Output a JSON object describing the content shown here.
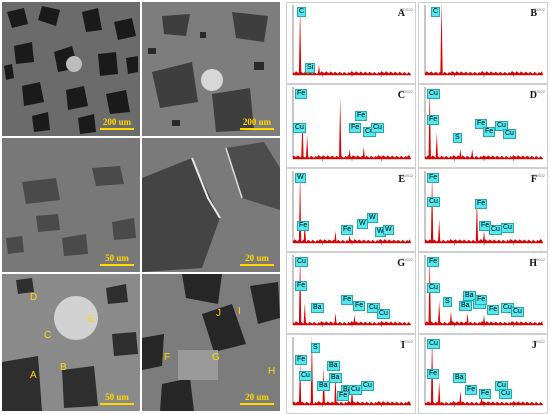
{
  "sem_panels": [
    {
      "scale_label": "200 um"
    },
    {
      "scale_label": "200 um"
    },
    {
      "scale_label": "50 um"
    },
    {
      "scale_label": "20 um"
    },
    {
      "scale_label": "50 um",
      "point_labels": [
        "A",
        "B",
        "C",
        "D",
        "E"
      ]
    },
    {
      "scale_label": "20 um",
      "point_labels": [
        "F",
        "G",
        "H",
        "I",
        "J"
      ]
    }
  ],
  "eds_panels": [
    {
      "letter": "A",
      "tag": "EDS02",
      "elements": [
        "C",
        "Si"
      ]
    },
    {
      "letter": "B",
      "tag": "EDS02",
      "elements": [
        "C"
      ]
    },
    {
      "letter": "C",
      "tag": "EDS02",
      "elements": [
        "Fe",
        "Cu",
        "Fe",
        "Fe",
        "Cu",
        "Cu"
      ]
    },
    {
      "letter": "D",
      "tag": "EDS02",
      "elements": [
        "Cu",
        "Fe",
        "S",
        "Fe",
        "Fe",
        "Cu",
        "Cu"
      ]
    },
    {
      "letter": "E",
      "tag": "EDS02",
      "elements": [
        "W",
        "Fe",
        "Fe",
        "W",
        "W",
        "W",
        "W"
      ]
    },
    {
      "letter": "F",
      "tag": "EDS02",
      "elements": [
        "Fe",
        "Cu",
        "Fe",
        "Fe",
        "Cu",
        "Cu"
      ]
    },
    {
      "letter": "G",
      "tag": "EDS02",
      "elements": [
        "Cu",
        "Fe",
        "Ba",
        "Fe",
        "Fe",
        "Cu",
        "Cu"
      ]
    },
    {
      "letter": "H",
      "tag": "EDS02",
      "elements": [
        "Fe",
        "Cu",
        "S",
        "Ba",
        "Ba",
        "Ba",
        "Fe",
        "Fe",
        "Cu",
        "Cu"
      ]
    },
    {
      "letter": "I",
      "tag": "EDS02",
      "elements": [
        "S",
        "Fe",
        "Ba",
        "Cu",
        "Ba",
        "Ba",
        "Ba",
        "Fe",
        "Cu",
        "Cu"
      ]
    },
    {
      "letter": "J",
      "tag": "EDS02",
      "elements": [
        "Cu",
        "Fe",
        "Ba",
        "Fe",
        "Fe",
        "Cu",
        "Cu"
      ]
    }
  ],
  "colors": {
    "scale_yellow": "#ffd800",
    "spectrum_red": "#e00000",
    "element_tag_cyan": "#55e8ee"
  }
}
